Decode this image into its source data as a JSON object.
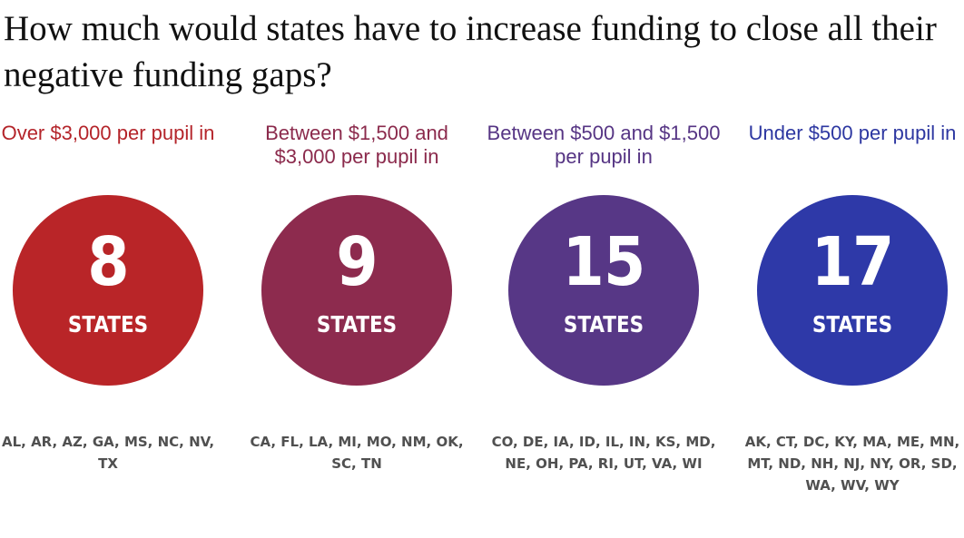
{
  "title": "How much would states have to increase funding to close all their negative funding gaps?",
  "groups": [
    {
      "label": "Over $3,000 per pupil in",
      "count": "8",
      "unit": "STATES",
      "states": "AL, AR, AZ, GA, MS, NC, NV, TX",
      "label_color": "#b4242a",
      "circle_color": "#b92528"
    },
    {
      "label": "Between $1,500 and $3,000 per pupil in",
      "count": "9",
      "unit": "STATES",
      "states": "CA, FL, LA, MI, MO, NM, OK, SC, TN",
      "label_color": "#8b2a4c",
      "circle_color": "#8d2b4e"
    },
    {
      "label": "Between $500 and $1,500 per pupil in",
      "count": "15",
      "unit": "STATES",
      "states": "CO, DE, IA, ID, IL, IN, KS, MD, NE, OH, PA, RI, UT, VA, WI",
      "label_color": "#563584",
      "circle_color": "#573786"
    },
    {
      "label": "Under $500 per pupil in",
      "count": "17",
      "unit": "STATES",
      "states": "AK, CT, DC, KY, MA, ME, MN, MT, ND, NH, NJ, NY, OR, SD, WA, WV, WY",
      "label_color": "#2d37a1",
      "circle_color": "#2e39a8"
    }
  ]
}
